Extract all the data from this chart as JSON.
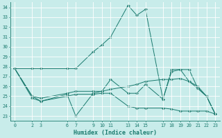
{
  "xlabel": "Humidex (Indice chaleur)",
  "background_color": "#c8ecea",
  "line_color": "#1a7a6e",
  "grid_color": "#ffffff",
  "x_ticks": [
    0,
    2,
    3,
    6,
    7,
    9,
    10,
    11,
    13,
    14,
    15,
    17,
    18,
    19,
    20,
    21,
    22,
    23
  ],
  "ylim": [
    22.5,
    34.5
  ],
  "xlim": [
    -0.5,
    23.5
  ],
  "yticks": [
    23,
    24,
    25,
    26,
    27,
    28,
    29,
    30,
    31,
    32,
    33,
    34
  ],
  "lines": [
    {
      "x": [
        0,
        2,
        3,
        6,
        7,
        9,
        10,
        11,
        13,
        14,
        15,
        17,
        18,
        19,
        20,
        21,
        22,
        23
      ],
      "y": [
        27.8,
        27.8,
        27.8,
        27.8,
        27.8,
        29.5,
        30.2,
        31.0,
        34.2,
        33.2,
        33.8,
        24.7,
        27.7,
        27.7,
        27.7,
        25.8,
        25.0,
        23.2
      ]
    },
    {
      "x": [
        0,
        2,
        3,
        6,
        7,
        9,
        10,
        11,
        13,
        14,
        15,
        17,
        18,
        19,
        20,
        21,
        22,
        23
      ],
      "y": [
        27.8,
        24.8,
        24.5,
        25.2,
        23.0,
        25.3,
        25.5,
        26.7,
        25.3,
        25.3,
        26.2,
        24.7,
        27.5,
        27.7,
        26.5,
        25.8,
        25.0,
        23.2
      ]
    },
    {
      "x": [
        0,
        2,
        3,
        6,
        7,
        9,
        10,
        11,
        13,
        14,
        15,
        17,
        18,
        19,
        20,
        21,
        22,
        23
      ],
      "y": [
        27.8,
        25.0,
        24.8,
        25.3,
        25.5,
        25.5,
        25.5,
        25.7,
        26.0,
        26.2,
        26.5,
        26.7,
        26.7,
        26.8,
        26.5,
        26.0,
        25.0,
        23.2
      ]
    },
    {
      "x": [
        0,
        2,
        3,
        6,
        7,
        9,
        10,
        11,
        13,
        14,
        15,
        17,
        18,
        19,
        20,
        21,
        22,
        23
      ],
      "y": [
        27.8,
        25.0,
        24.5,
        25.0,
        25.2,
        25.2,
        25.3,
        25.3,
        24.0,
        23.8,
        23.8,
        23.8,
        23.7,
        23.5,
        23.5,
        23.5,
        23.5,
        23.2
      ]
    }
  ]
}
